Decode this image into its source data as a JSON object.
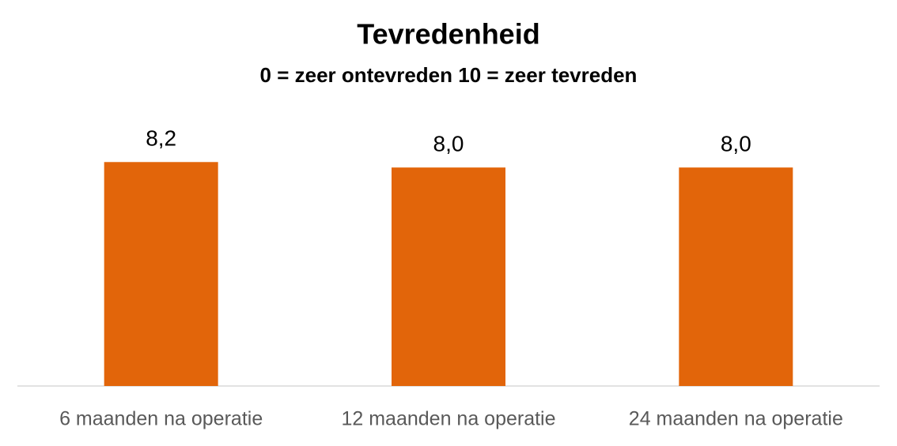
{
  "chart_data": {
    "type": "bar",
    "title": "Tevredenheid",
    "subtitle": "0 = zeer ontevreden  10 = zeer tevreden",
    "categories": [
      "6 maanden na operatie",
      "12 maanden na operatie",
      "24 maanden na operatie"
    ],
    "values": [
      8.2,
      8.0,
      8.0
    ],
    "value_labels": [
      "8,2",
      "8,0",
      "8,0"
    ],
    "color": "#e2650a"
  }
}
